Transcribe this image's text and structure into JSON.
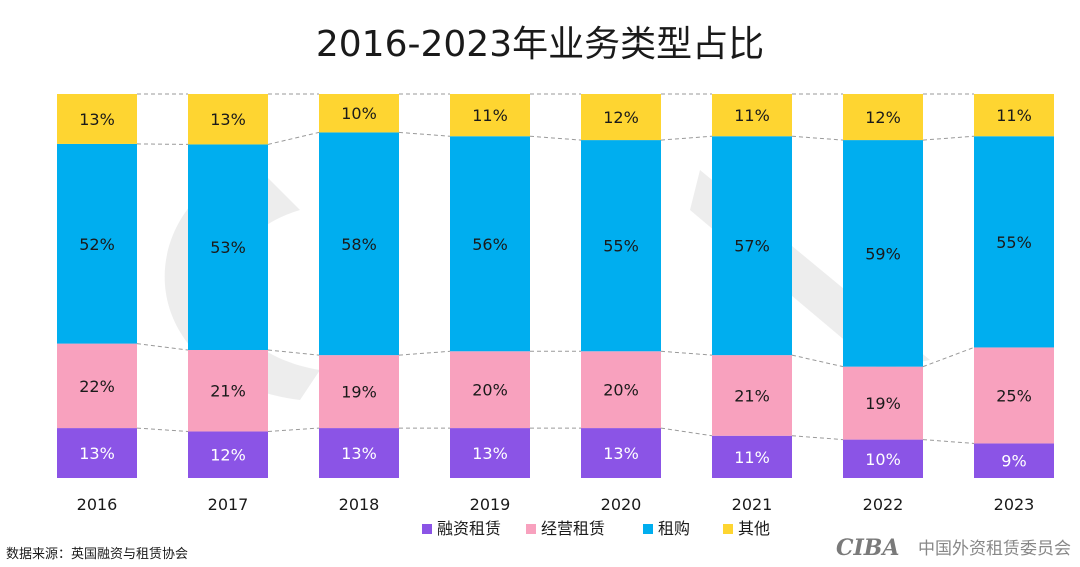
{
  "chart_data": {
    "type": "bar",
    "stacked": true,
    "normalized": true,
    "title": "2016-2023年业务类型占比",
    "categories": [
      "2016",
      "2017",
      "2018",
      "2019",
      "2020",
      "2021",
      "2022",
      "2023"
    ],
    "series": [
      {
        "name": "融资租赁",
        "color": "#8b54e6",
        "values": [
          13,
          12,
          13,
          13,
          13,
          11,
          10,
          9
        ]
      },
      {
        "name": "经营租赁",
        "color": "#f8a1be",
        "values": [
          22,
          21,
          19,
          20,
          20,
          21,
          19,
          25
        ]
      },
      {
        "name": "租购",
        "color": "#00aeef",
        "values": [
          52,
          53,
          58,
          56,
          55,
          57,
          59,
          55
        ]
      },
      {
        "name": "其他",
        "color": "#fed531",
        "values": [
          13,
          13,
          10,
          11,
          12,
          11,
          12,
          11
        ]
      }
    ],
    "value_suffix": "%",
    "legend_position": "bottom",
    "grid": false
  },
  "source_note": "数据来源：英国融资与租赁协会",
  "watermark": {
    "logo": "CIBA",
    "org": "中国外资租赁委员会"
  }
}
